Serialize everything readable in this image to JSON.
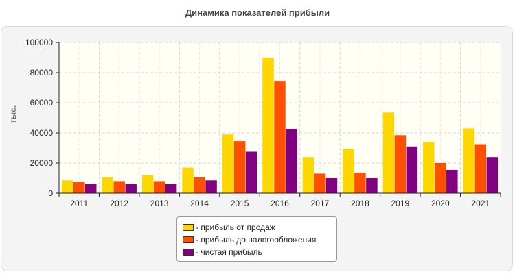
{
  "chart_data": {
    "type": "bar",
    "title": "Динамика показателей прибыли",
    "ylabel": "тыс.",
    "xlabel": "",
    "categories": [
      "2011",
      "2012",
      "2013",
      "2014",
      "2015",
      "2016",
      "2017",
      "2018",
      "2019",
      "2020",
      "2021"
    ],
    "ylim": [
      0,
      100000
    ],
    "yticks": [
      0,
      20000,
      40000,
      60000,
      80000,
      100000
    ],
    "grid": true,
    "legend_position": "bottom-center",
    "series": [
      {
        "name": "- прибыль от продаж",
        "color": "#ffd700",
        "values": [
          8500,
          10500,
          12000,
          17000,
          39000,
          90000,
          24000,
          29500,
          53500,
          34000,
          43000
        ]
      },
      {
        "name": "- прибыль до налогообложения",
        "color": "#ff5000",
        "values": [
          7500,
          8000,
          8000,
          10500,
          34500,
          74500,
          13000,
          13500,
          38500,
          20000,
          32500
        ]
      },
      {
        "name": "- чистая прибыль",
        "color": "#800080",
        "values": [
          6000,
          6000,
          6000,
          8500,
          27500,
          42500,
          10000,
          10000,
          31000,
          15500,
          24000
        ]
      }
    ]
  }
}
